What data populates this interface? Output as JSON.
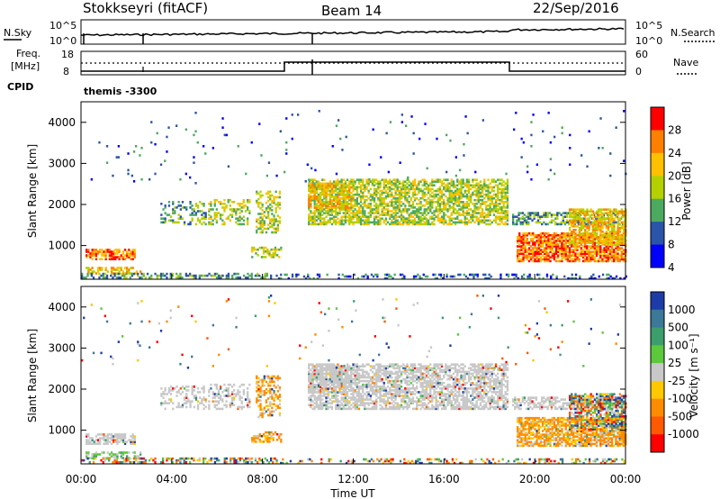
{
  "header": {
    "station": "Stokkseyri (fitACF)",
    "beam": "Beam 14",
    "date": "22/Sep/2016"
  },
  "nsky_panel": {
    "left_label": "N.Sky",
    "left_ticks": [
      "10^5",
      "10^0"
    ],
    "right_ticks": [
      "10^5",
      "10^0"
    ],
    "right_label": "N.Search"
  },
  "freq_panel": {
    "left_label_1": "Freq.",
    "left_label_2": "[MHz]",
    "left_ticks": [
      "18",
      "8"
    ],
    "right_ticks": [
      "60",
      "0"
    ],
    "right_label": "Nave",
    "cpid_label": "CPID",
    "cpid_value": "themis -3300"
  },
  "chart_data": [
    {
      "type": "heatmap",
      "quantity": "power",
      "ylabel": "Slant Range [km]",
      "yticks": [
        "1000",
        "2000",
        "3000",
        "4000"
      ],
      "ylim": [
        180,
        4500
      ],
      "xlim_hours": [
        0,
        24
      ],
      "colorbar_label": "Power [dB]",
      "colorbar_ticks": [
        "28",
        "24",
        "20",
        "16",
        "12",
        "8",
        "4"
      ],
      "colorbar_colors": [
        "#ff0000",
        "#ff7f00",
        "#ffc000",
        "#b4d000",
        "#4caa60",
        "#2a55a8",
        "#0000ff"
      ]
    },
    {
      "type": "heatmap",
      "quantity": "velocity",
      "ylabel": "Slant Range [km]",
      "yticks": [
        "1000",
        "2000",
        "3000",
        "4000"
      ],
      "ylim": [
        180,
        4500
      ],
      "xlim_hours": [
        0,
        24
      ],
      "xlabel": "Time UT",
      "xticks": [
        "00:00",
        "04:00",
        "08:00",
        "12:00",
        "16:00",
        "20:00",
        "00:00"
      ],
      "colorbar_label": "Velocity [m s⁻¹]",
      "colorbar_ticks": [
        "1000",
        "500",
        "100",
        "25",
        "-25",
        "-100",
        "-500",
        "-1000"
      ],
      "colorbar_colors": [
        "#1e3ca8",
        "#3c7898",
        "#3c9e6c",
        "#5cc83c",
        "#c8c8c8",
        "#ffc800",
        "#ff8c00",
        "#ff5a00",
        "#ff0000"
      ]
    }
  ]
}
